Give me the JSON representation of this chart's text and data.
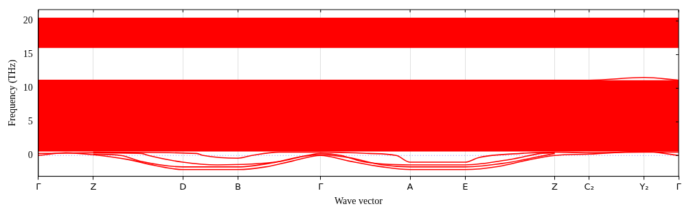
{
  "chart_data": {
    "type": "line",
    "xlabel": "Wave vector",
    "ylabel": "Frequency (THz)",
    "ylim": [
      -3.1,
      21.7
    ],
    "categories": [
      "Γ",
      null,
      null,
      null,
      null,
      null,
      null,
      null,
      "Z",
      null,
      null,
      null,
      null,
      null,
      null,
      null,
      null,
      null,
      null,
      null,
      null,
      "D",
      null,
      null,
      null,
      null,
      null,
      null,
      null,
      "B",
      null,
      null,
      null,
      null,
      null,
      null,
      null,
      null,
      null,
      null,
      null,
      "Γ",
      null,
      null,
      null,
      null,
      null,
      null,
      null,
      null,
      null,
      null,
      null,
      null,
      "A",
      null,
      null,
      null,
      null,
      null,
      null,
      null,
      "E",
      null,
      null,
      null,
      null,
      null,
      null,
      null,
      null,
      null,
      null,
      null,
      null,
      "Z",
      null,
      null,
      null,
      null,
      "C₂",
      null,
      null,
      null,
      null,
      null,
      null,
      null,
      "Y₂",
      null,
      null,
      null,
      null,
      "Γ"
    ],
    "yticks": [
      0,
      5,
      10,
      15,
      20
    ],
    "grid": "x",
    "legend": false,
    "marker": "none",
    "line_style": "solid",
    "bands": [
      {
        "axis": "y",
        "from": 16.0,
        "to": 20.5,
        "color": "#ff0000"
      },
      {
        "axis": "y",
        "from": 0.6,
        "to": 11.2,
        "color": "#ff0000"
      }
    ],
    "ref_lines": [
      {
        "axis": "y",
        "value": 0,
        "color": "#8080ff",
        "line_style": "dotted"
      }
    ],
    "series": [
      {
        "color": "#ff0000",
        "values": [
          0,
          null,
          null,
          null,
          0.4,
          null,
          null,
          null,
          0.1,
          null,
          null,
          null,
          null,
          -0.6,
          null,
          null,
          null,
          -1.5,
          null,
          null,
          null,
          -2.1,
          null,
          null,
          null,
          null,
          null,
          null,
          null,
          -2.1,
          null,
          null,
          null,
          -1.7,
          null,
          null,
          null,
          -0.8,
          null,
          null,
          null,
          0,
          null,
          null,
          null,
          -0.8,
          null,
          null,
          null,
          null,
          -1.7,
          null,
          null,
          null,
          -2.1,
          null,
          null,
          null,
          null,
          null,
          null,
          null,
          -2.1,
          null,
          null,
          null,
          null,
          -1.6,
          null,
          null,
          null,
          -0.7,
          null,
          null,
          null,
          0,
          null,
          null,
          null,
          null,
          0.2,
          null,
          null,
          null,
          null,
          null,
          null,
          null,
          0.6,
          null,
          null,
          null,
          null,
          0
        ]
      },
      {
        "color": "#ff0000",
        "values": [
          null,
          null,
          null,
          null,
          null,
          null,
          null,
          null,
          0.2,
          null,
          null,
          null,
          0,
          null,
          null,
          -0.9,
          null,
          null,
          null,
          null,
          null,
          -1.7,
          null,
          null,
          null,
          null,
          null,
          null,
          null,
          -1.7,
          null,
          null,
          null,
          null,
          -1.1,
          null,
          null,
          null,
          -0.2,
          null,
          null,
          0.1,
          null,
          null,
          null,
          -0.3,
          null,
          null,
          null,
          null,
          -1.4,
          null,
          null,
          null,
          -1.7,
          null,
          null,
          null,
          null,
          null,
          null,
          null,
          -1.7,
          null,
          null,
          null,
          null,
          null,
          -1.1,
          null,
          null,
          null,
          -0.3,
          null,
          null,
          0.3,
          null,
          null,
          null,
          null,
          null,
          null,
          null,
          null,
          null,
          null,
          null,
          null,
          null,
          null,
          null,
          null,
          null,
          null
        ]
      },
      {
        "color": "#ff0000",
        "values": [
          0.3,
          null,
          null,
          null,
          null,
          null,
          null,
          null,
          0.4,
          null,
          null,
          null,
          null,
          null,
          null,
          0.3,
          0,
          null,
          null,
          null,
          null,
          -1.0,
          null,
          null,
          null,
          null,
          -1.4,
          null,
          null,
          null,
          null,
          null,
          null,
          null,
          null,
          -0.9,
          null,
          null,
          null,
          0,
          null,
          0.3,
          null,
          null,
          0,
          null,
          null,
          -0.9,
          null,
          null,
          null,
          null,
          null,
          null,
          -1.4,
          null,
          null,
          null,
          null,
          null,
          null,
          null,
          -1.4,
          null,
          null,
          null,
          null,
          null,
          null,
          -0.5,
          null,
          null,
          null,
          0.3,
          null,
          0.4,
          null,
          null,
          null,
          null,
          null,
          null,
          null,
          null,
          null,
          null,
          null,
          null,
          null,
          null,
          null,
          null,
          null,
          null
        ]
      },
      {
        "color": "#ff0000",
        "values": [
          null,
          null,
          null,
          null,
          null,
          null,
          null,
          null,
          0.5,
          null,
          null,
          null,
          null,
          null,
          null,
          null,
          null,
          null,
          null,
          null,
          null,
          null,
          null,
          0.3,
          0,
          null,
          null,
          null,
          null,
          -0.4,
          null,
          0,
          null,
          null,
          null,
          0.5,
          null,
          null,
          null,
          null,
          null,
          0.5,
          null,
          null,
          null,
          null,
          null,
          null,
          0.3,
          null,
          null,
          null,
          0,
          null,
          -1.0,
          null,
          null,
          null,
          null,
          null,
          null,
          null,
          -1.0,
          null,
          -0.3,
          null,
          null,
          null,
          null,
          null,
          0.3,
          null,
          null,
          null,
          null,
          0.5,
          null,
          null,
          null,
          null,
          0.4,
          null,
          null,
          null,
          null,
          null,
          null,
          null,
          0.5,
          null,
          null,
          null,
          null,
          0.5
        ]
      },
      {
        "color": "#ff0000",
        "values": [
          11.2,
          null,
          null,
          null,
          null,
          null,
          null,
          null,
          null,
          null,
          null,
          null,
          null,
          null,
          null,
          null,
          null,
          null,
          null,
          null,
          null,
          null,
          null,
          null,
          null,
          null,
          null,
          null,
          null,
          null,
          null,
          null,
          null,
          null,
          null,
          null,
          null,
          null,
          null,
          null,
          null,
          null,
          null,
          null,
          null,
          null,
          null,
          null,
          null,
          null,
          null,
          null,
          null,
          null,
          null,
          null,
          null,
          null,
          null,
          null,
          null,
          null,
          null,
          null,
          null,
          null,
          null,
          null,
          null,
          null,
          null,
          null,
          null,
          null,
          null,
          null,
          null,
          null,
          null,
          null,
          11.2,
          null,
          null,
          null,
          null,
          null,
          null,
          null,
          11.6,
          null,
          null,
          null,
          null,
          11.2
        ]
      }
    ]
  }
}
